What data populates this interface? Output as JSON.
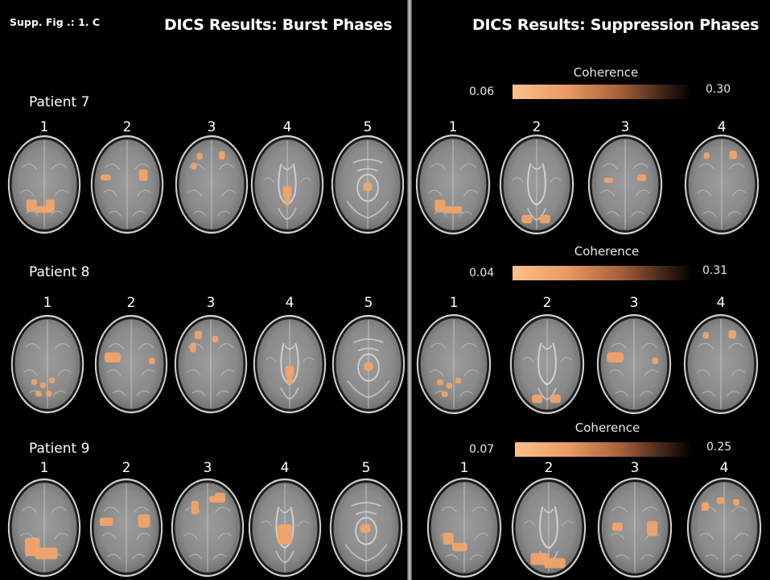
{
  "figure_label": "Supp. Fig .: 1. C",
  "left": {
    "title": "DICS Results: Burst Phases",
    "slice_numbers": [
      "1",
      "2",
      "3",
      "4",
      "5"
    ]
  },
  "right": {
    "title": "DICS Results: Suppression Phases",
    "slice_numbers": [
      "1",
      "2",
      "3",
      "4"
    ]
  },
  "patients": [
    {
      "label": "Patient  7",
      "coherence": {
        "label": "Coherence",
        "min": "0.06",
        "max": "0.30"
      }
    },
    {
      "label": "Patient  8",
      "coherence": {
        "label": "Coherence",
        "min": "0.04",
        "max": "0.31"
      }
    },
    {
      "label": "Patient  9",
      "coherence": {
        "label": "Coherence",
        "min": "0.07",
        "max": "0.25"
      }
    }
  ],
  "colors": {
    "background": "#000000",
    "brain_tissue": "#8f8f8f",
    "activation": "#f3a468",
    "colorbar_low": "#fdc08a",
    "colorbar_high": "#000000"
  }
}
